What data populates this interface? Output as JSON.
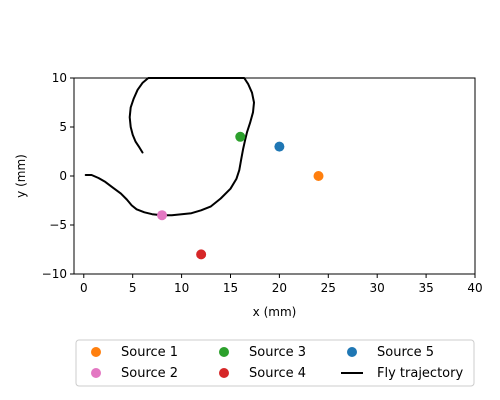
{
  "chart_data": {
    "type": "scatter",
    "xlabel": "x (mm)",
    "ylabel": "y (mm)",
    "xlim": [
      -1,
      40
    ],
    "ylim": [
      -10,
      10
    ],
    "xticks": [
      0,
      5,
      10,
      15,
      20,
      25,
      30,
      35,
      40
    ],
    "yticks": [
      -10,
      -5,
      0,
      5,
      10
    ],
    "xtick_labels": [
      "0",
      "5",
      "10",
      "15",
      "20",
      "25",
      "30",
      "35",
      "40"
    ],
    "ytick_labels": [
      "−10",
      "−5",
      "0",
      "5",
      "10"
    ],
    "grid": false,
    "legend_position": "below plot",
    "series": [
      {
        "name": "Source 1",
        "color": "#ff7f0e",
        "points": [
          [
            24,
            0
          ]
        ]
      },
      {
        "name": "Source 2",
        "color": "#e377c2",
        "points": [
          [
            8,
            -4
          ]
        ]
      },
      {
        "name": "Source 3",
        "color": "#2ca02c",
        "points": [
          [
            16,
            4
          ]
        ]
      },
      {
        "name": "Source 4",
        "color": "#d62728",
        "points": [
          [
            12,
            -8
          ]
        ]
      },
      {
        "name": "Source 5",
        "color": "#1f77b4",
        "points": [
          [
            20,
            3
          ]
        ]
      }
    ],
    "trajectory": {
      "name": "Fly trajectory",
      "color": "#000000",
      "points": [
        [
          0.2,
          0.1
        ],
        [
          0.8,
          0.1
        ],
        [
          1.5,
          -0.2
        ],
        [
          2.2,
          -0.6
        ],
        [
          3.0,
          -1.2
        ],
        [
          3.8,
          -1.8
        ],
        [
          4.4,
          -2.4
        ],
        [
          4.9,
          -3.0
        ],
        [
          5.4,
          -3.4
        ],
        [
          6.2,
          -3.7
        ],
        [
          7.0,
          -3.9
        ],
        [
          8.0,
          -4.0
        ],
        [
          9.0,
          -4.0
        ],
        [
          10.0,
          -3.9
        ],
        [
          11.0,
          -3.8
        ],
        [
          12.0,
          -3.5
        ],
        [
          13.0,
          -3.1
        ],
        [
          14.0,
          -2.3
        ],
        [
          15.0,
          -1.3
        ],
        [
          15.6,
          -0.3
        ],
        [
          15.9,
          0.6
        ],
        [
          16.1,
          1.7
        ],
        [
          16.3,
          2.8
        ],
        [
          16.5,
          3.7
        ],
        [
          16.7,
          4.5
        ],
        [
          17.0,
          5.4
        ],
        [
          17.3,
          6.5
        ],
        [
          17.4,
          7.5
        ],
        [
          17.2,
          8.5
        ],
        [
          16.8,
          9.4
        ],
        [
          16.4,
          10.0
        ],
        [
          6.6,
          10.0
        ],
        [
          6.0,
          9.5
        ],
        [
          5.5,
          8.8
        ],
        [
          5.1,
          7.9
        ],
        [
          4.8,
          7.0
        ],
        [
          4.7,
          6.0
        ],
        [
          4.8,
          5.0
        ],
        [
          5.0,
          4.2
        ],
        [
          5.3,
          3.5
        ],
        [
          5.7,
          2.9
        ],
        [
          6.0,
          2.4
        ]
      ]
    }
  }
}
